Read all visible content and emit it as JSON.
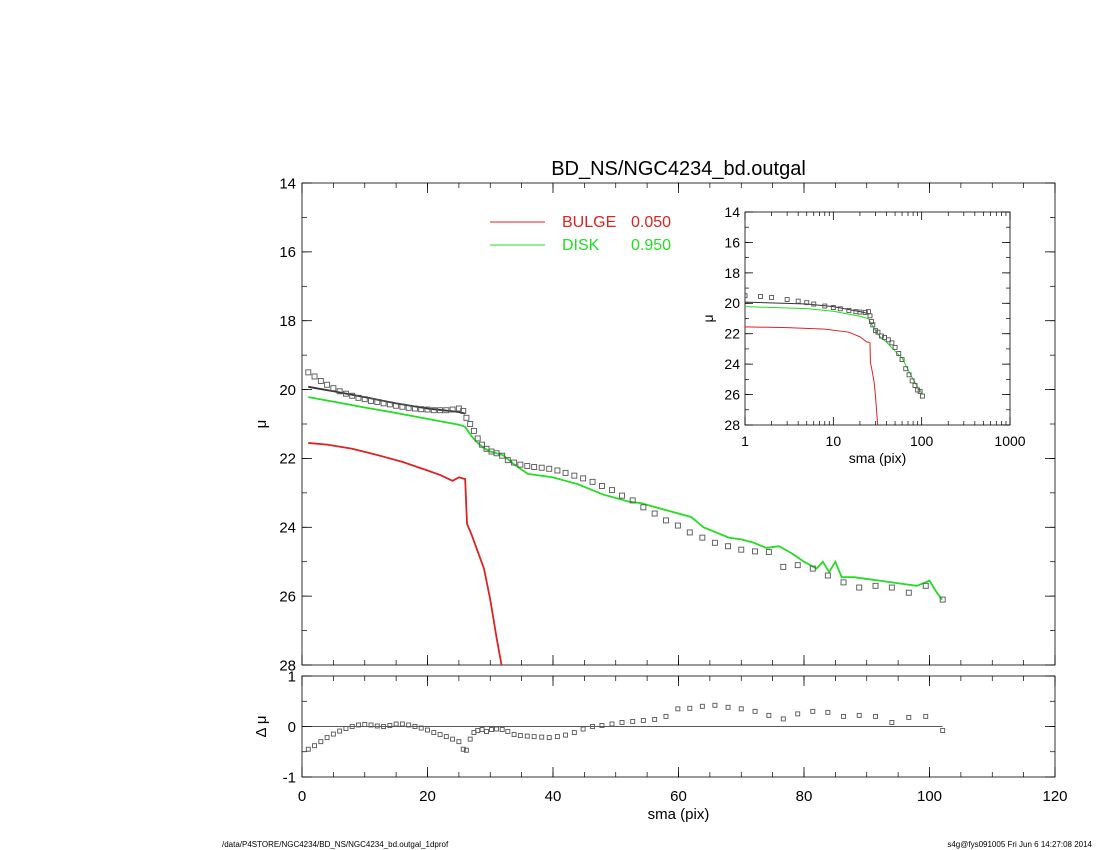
{
  "colors": {
    "bulge": "#dd2222",
    "disk": "#22dd22",
    "data": "#555555",
    "axis": "#000000",
    "model": "#333333"
  },
  "footer": {
    "path": "/data/P4STORE/NGC4234/BD_NS/NGC4234_bd.outgal_1dprof",
    "stamp": "s4g@fys091005  Fri Jun  6 14:27:08 2014"
  },
  "chart_data": [
    {
      "id": "main",
      "type": "line",
      "title": "BD_NS/NGC4234_bd.outgal",
      "xlabel": "",
      "ylabel": "μ",
      "xlim": [
        0,
        120
      ],
      "ylim": [
        28,
        14
      ],
      "x_ticks": [
        0,
        20,
        40,
        60,
        80,
        100,
        120
      ],
      "y_ticks": [
        14,
        16,
        18,
        20,
        22,
        24,
        26,
        28
      ],
      "legend": {
        "placement": "top-center",
        "entries": [
          {
            "label": "BULGE",
            "value": "0.050",
            "color": "#dd2222"
          },
          {
            "label": "DISK",
            "value": "0.950",
            "color": "#22dd22"
          }
        ]
      },
      "series": [
        {
          "name": "BULGE",
          "color": "#dd2222",
          "x": [
            1,
            4,
            8,
            12,
            16,
            20,
            22,
            24,
            25,
            26,
            26.3,
            27,
            28,
            29,
            30,
            31,
            31.8
          ],
          "y": [
            21.55,
            21.6,
            21.72,
            21.9,
            22.1,
            22.35,
            22.48,
            22.65,
            22.55,
            22.6,
            23.9,
            24.2,
            24.7,
            25.2,
            26.1,
            27.2,
            28.0
          ]
        },
        {
          "name": "DISK",
          "color": "#22dd22",
          "x": [
            1,
            5,
            10,
            15,
            20,
            25,
            26,
            27,
            28,
            29,
            30,
            31,
            32,
            34,
            36,
            38,
            40,
            42,
            44,
            46,
            48,
            50,
            52,
            54,
            56,
            58,
            60,
            62,
            64,
            66,
            68,
            70,
            72,
            74,
            76,
            78,
            80,
            82,
            83,
            84,
            85,
            86,
            88,
            90,
            92,
            94,
            96,
            98,
            100,
            101,
            102
          ],
          "y": [
            20.22,
            20.35,
            20.52,
            20.68,
            20.85,
            21.02,
            21.08,
            21.35,
            21.55,
            21.7,
            21.8,
            21.85,
            21.9,
            22.2,
            22.45,
            22.5,
            22.55,
            22.65,
            22.75,
            22.9,
            23.05,
            23.15,
            23.25,
            23.3,
            23.4,
            23.5,
            23.6,
            23.7,
            24.0,
            24.15,
            24.3,
            24.35,
            24.45,
            24.6,
            24.55,
            24.75,
            25.0,
            25.2,
            25.0,
            25.3,
            25.0,
            25.45,
            25.45,
            25.5,
            25.55,
            25.6,
            25.65,
            25.7,
            25.55,
            25.85,
            26.1
          ]
        },
        {
          "name": "",
          "color": "#333333",
          "x": [
            1,
            5,
            10,
            15,
            20,
            25,
            26
          ],
          "y": [
            19.92,
            20.05,
            20.22,
            20.4,
            20.55,
            20.65,
            20.7
          ]
        },
        {
          "name": "",
          "color": "#555555",
          "marker": "square",
          "x": [
            1,
            2,
            3,
            4,
            5,
            6,
            7,
            8,
            9,
            10,
            11,
            12,
            13,
            14,
            15,
            16,
            17,
            18,
            19,
            20,
            21,
            22,
            23,
            24,
            25,
            25.7,
            26.2,
            26.8,
            27.4,
            28.0,
            28.7,
            29.4,
            30.2,
            31.0,
            31.9,
            32.8,
            33.8,
            34.8,
            35.9,
            37.0,
            38.2,
            39.4,
            40.7,
            42.0,
            43.4,
            44.8,
            46.3,
            47.8,
            49.4,
            51.0,
            52.7,
            54.4,
            56.2,
            58.0,
            59.9,
            61.8,
            63.8,
            65.8,
            67.9,
            70.0,
            72.2,
            74.4,
            76.7,
            79.0,
            81.4,
            83.8,
            86.3,
            88.8,
            91.4,
            94.0,
            96.7,
            99.4,
            102.1
          ],
          "y": [
            19.5,
            19.62,
            19.75,
            19.86,
            19.96,
            20.05,
            20.12,
            20.18,
            20.24,
            20.28,
            20.33,
            20.36,
            20.4,
            20.43,
            20.47,
            20.5,
            20.53,
            20.55,
            20.57,
            20.58,
            20.6,
            20.6,
            20.6,
            20.58,
            20.55,
            20.62,
            20.82,
            21.0,
            21.2,
            21.42,
            21.6,
            21.72,
            21.8,
            21.85,
            21.92,
            22.05,
            22.12,
            22.18,
            22.22,
            22.25,
            22.27,
            22.3,
            22.35,
            22.42,
            22.5,
            22.58,
            22.68,
            22.8,
            22.92,
            23.08,
            23.22,
            23.42,
            23.6,
            23.8,
            23.95,
            24.15,
            24.3,
            24.45,
            24.55,
            24.65,
            24.7,
            24.72,
            25.15,
            25.1,
            25.2,
            25.4,
            25.6,
            25.75,
            25.7,
            25.75,
            25.9,
            25.7,
            26.1
          ]
        }
      ]
    },
    {
      "id": "residual",
      "type": "scatter",
      "xlabel": "sma (pix)",
      "ylabel": "Δ μ",
      "xlim": [
        0,
        120
      ],
      "ylim": [
        -1,
        1
      ],
      "x_ticks": [
        0,
        20,
        40,
        60,
        80,
        100,
        120
      ],
      "y_ticks": [
        -1,
        0,
        1
      ],
      "series": [
        {
          "name": "",
          "color": "#555555",
          "marker": "square",
          "x": [
            1,
            2,
            3,
            4,
            5,
            6,
            7,
            8,
            9,
            10,
            11,
            12,
            13,
            14,
            15,
            16,
            17,
            18,
            19,
            20,
            21,
            22,
            23,
            24,
            25,
            25.7,
            26.2,
            26.8,
            27.4,
            28.0,
            28.7,
            29.4,
            30.2,
            31.0,
            31.9,
            32.8,
            33.8,
            34.8,
            35.9,
            37.0,
            38.2,
            39.4,
            40.7,
            42.0,
            43.4,
            44.8,
            46.3,
            47.8,
            49.4,
            51.0,
            52.7,
            54.4,
            56.2,
            58.0,
            59.9,
            61.8,
            63.8,
            65.8,
            67.9,
            70.0,
            72.2,
            74.4,
            76.7,
            79.0,
            81.4,
            83.8,
            86.3,
            88.8,
            91.4,
            94.0,
            96.7,
            99.4,
            102.1
          ],
          "y": [
            -0.45,
            -0.38,
            -0.3,
            -0.22,
            -0.15,
            -0.09,
            -0.04,
            0.0,
            0.03,
            0.04,
            0.03,
            0.01,
            0.0,
            0.02,
            0.05,
            0.05,
            0.03,
            0.0,
            -0.03,
            -0.07,
            -0.12,
            -0.16,
            -0.2,
            -0.25,
            -0.3,
            -0.45,
            -0.47,
            -0.25,
            -0.12,
            -0.08,
            -0.06,
            -0.1,
            -0.06,
            -0.05,
            -0.06,
            -0.1,
            -0.16,
            -0.18,
            -0.19,
            -0.2,
            -0.21,
            -0.22,
            -0.2,
            -0.17,
            -0.12,
            -0.05,
            0.0,
            0.02,
            0.05,
            0.08,
            0.1,
            0.12,
            0.14,
            0.2,
            0.35,
            0.36,
            0.4,
            0.42,
            0.38,
            0.35,
            0.3,
            0.22,
            0.15,
            0.25,
            0.3,
            0.28,
            0.2,
            0.22,
            0.2,
            0.08,
            0.18,
            0.2,
            -0.08
          ]
        }
      ]
    },
    {
      "id": "inset",
      "type": "line",
      "xlabel": "sma (pix)",
      "ylabel": "μ",
      "xscale": "log",
      "xlim": [
        1,
        1000
      ],
      "ylim": [
        28,
        14
      ],
      "x_ticks": [
        1,
        10,
        100,
        1000
      ],
      "y_ticks": [
        14,
        16,
        18,
        20,
        22,
        24,
        26,
        28
      ],
      "series": [
        {
          "name": "BULGE",
          "color": "#dd2222",
          "x": [
            1,
            3,
            8,
            15,
            20,
            24,
            25,
            26,
            26.3,
            27,
            28,
            29,
            30,
            31,
            31.8
          ],
          "y": [
            21.55,
            21.6,
            21.7,
            21.9,
            22.2,
            22.55,
            22.55,
            22.6,
            23.9,
            24.2,
            24.7,
            25.2,
            26.1,
            27.2,
            28.0
          ]
        },
        {
          "name": "DISK",
          "color": "#22dd22",
          "x": [
            1,
            5,
            10,
            20,
            25,
            27,
            30,
            35,
            40,
            50,
            60,
            70,
            80,
            90,
            100
          ],
          "y": [
            20.22,
            20.35,
            20.52,
            20.85,
            21.02,
            21.35,
            21.8,
            22.3,
            22.55,
            23.15,
            23.6,
            24.35,
            25.0,
            25.5,
            25.9
          ]
        },
        {
          "name": "",
          "color": "#333333",
          "x": [
            1,
            5,
            10,
            20,
            26
          ],
          "y": [
            19.92,
            20.05,
            20.22,
            20.55,
            20.7
          ]
        },
        {
          "name": "",
          "color": "#555555",
          "marker": "square",
          "x": [
            1,
            1.5,
            2,
            3,
            4,
            5,
            6,
            8,
            10,
            12,
            15,
            18,
            20,
            23,
            25,
            26,
            27,
            28,
            30,
            32,
            35,
            38,
            42,
            46,
            50,
            55,
            60,
            66,
            72,
            78,
            84,
            90,
            96,
            102
          ],
          "y": [
            19.5,
            19.55,
            19.62,
            19.75,
            19.86,
            19.96,
            20.05,
            20.18,
            20.28,
            20.36,
            20.47,
            20.55,
            20.58,
            20.6,
            20.55,
            20.82,
            21.2,
            21.42,
            21.8,
            21.9,
            22.15,
            22.25,
            22.4,
            22.6,
            22.9,
            23.3,
            23.7,
            24.3,
            24.7,
            25.1,
            25.4,
            25.7,
            25.8,
            26.1
          ]
        }
      ]
    }
  ]
}
